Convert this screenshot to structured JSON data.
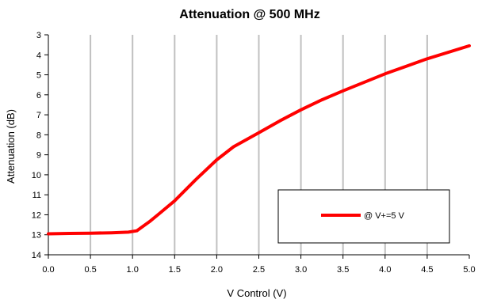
{
  "chart_data": {
    "type": "line",
    "title": "Attenuation @ 500 MHz",
    "xlabel": "V Control  (V)",
    "ylabel": "Attenuation (dB)",
    "xlim": [
      0.0,
      5.0
    ],
    "ylim": [
      3,
      14
    ],
    "y_inverted": true,
    "x_ticks": [
      "0.0",
      "0.5",
      "1.0",
      "1.5",
      "2.0",
      "2.5",
      "3.0",
      "3.5",
      "4.0",
      "4.5",
      "5.0"
    ],
    "y_ticks": [
      "3",
      "4",
      "5",
      "6",
      "7",
      "8",
      "9",
      "10",
      "11",
      "12",
      "13",
      "14"
    ],
    "grid": "vertical",
    "legend_placement": "lower-right",
    "series": [
      {
        "name": "@ V+=5 V",
        "color": "#ff0000",
        "x": [
          0.0,
          0.25,
          0.5,
          0.75,
          0.95,
          1.05,
          1.1,
          1.2,
          1.3,
          1.5,
          1.75,
          2.0,
          2.2,
          2.5,
          2.75,
          3.0,
          3.25,
          3.5,
          4.0,
          4.5,
          5.0
        ],
        "y": [
          12.95,
          12.93,
          12.92,
          12.9,
          12.87,
          12.8,
          12.65,
          12.35,
          12.0,
          11.3,
          10.25,
          9.25,
          8.6,
          7.9,
          7.3,
          6.75,
          6.25,
          5.8,
          4.95,
          4.2,
          3.55
        ]
      }
    ]
  }
}
